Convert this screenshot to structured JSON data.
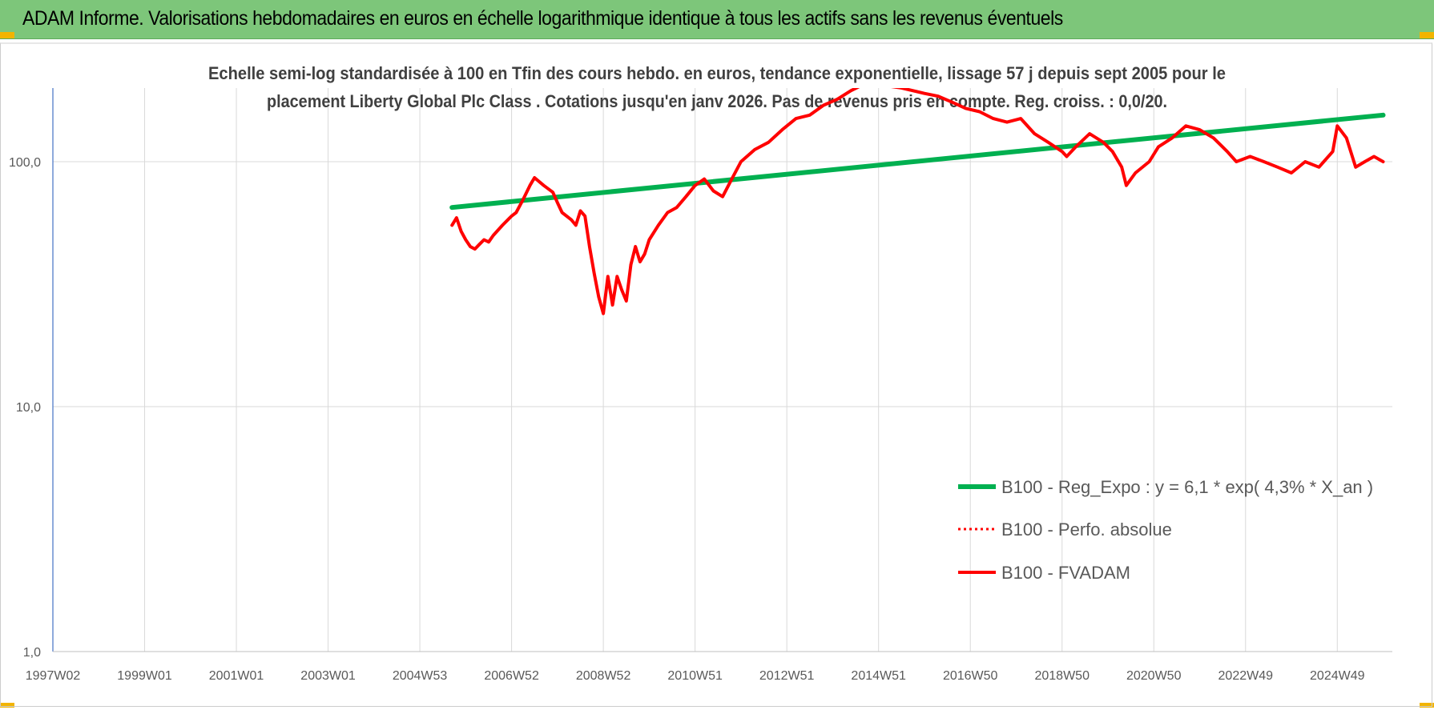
{
  "banner": {
    "title": "ADAM Informe. Valorisations hebdomadaires en euros en échelle logarithmique identique à tous les actifs sans les revenus éventuels"
  },
  "chart_data": {
    "type": "line",
    "subtitle_lines": [
      "Echelle semi-log standardisée à 100 en Tfin des cours hebdo. en euros, tendance exponentielle, lissage 57 j depuis sept 2005  pour le",
      "placement Liberty Global Plc Class . Cotations jusqu'en janv 2026. Pas de revenus pris en compte. Reg. croiss. : 0,0/20."
    ],
    "y_scale": "log",
    "ylim": [
      1,
      200
    ],
    "y_ticks": [
      {
        "value": 1,
        "label": "1,0"
      },
      {
        "value": 10,
        "label": "10,0"
      },
      {
        "value": 100,
        "label": "100,0"
      }
    ],
    "xlim": [
      1997.0,
      2026.2
    ],
    "x_ticks": [
      {
        "value": 1997.0,
        "label": "1997W02"
      },
      {
        "value": 1999.0,
        "label": "1999W01"
      },
      {
        "value": 2001.0,
        "label": "2001W01"
      },
      {
        "value": 2003.0,
        "label": "2003W01"
      },
      {
        "value": 2005.0,
        "label": "2004W53"
      },
      {
        "value": 2007.0,
        "label": "2006W52"
      },
      {
        "value": 2009.0,
        "label": "2008W52"
      },
      {
        "value": 2011.0,
        "label": "2010W51"
      },
      {
        "value": 2013.0,
        "label": "2012W51"
      },
      {
        "value": 2015.0,
        "label": "2014W51"
      },
      {
        "value": 2017.0,
        "label": "2016W50"
      },
      {
        "value": 2019.0,
        "label": "2018W50"
      },
      {
        "value": 2021.0,
        "label": "2020W50"
      },
      {
        "value": 2023.0,
        "label": "2022W49"
      },
      {
        "value": 2025.0,
        "label": "2024W49"
      }
    ],
    "grid": true,
    "legend_position": "bottom-right",
    "series": [
      {
        "name": "B100 - Reg_Expo : y = 6,1 * exp( 4,3% *  X_an )",
        "color": "#00b050",
        "style": "solid",
        "x": [
          2005.7,
          2026.0
        ],
        "y": [
          65,
          155
        ]
      },
      {
        "name": "B100 - Perfo. absolue",
        "color": "#ff0000",
        "style": "dotted",
        "x": [],
        "y": []
      },
      {
        "name": "B100 - FVADAM",
        "color": "#ff0000",
        "style": "solid",
        "x": [
          2005.7,
          2005.8,
          2005.9,
          2006.0,
          2006.1,
          2006.2,
          2006.3,
          2006.4,
          2006.5,
          2006.6,
          2006.8,
          2007.0,
          2007.1,
          2007.25,
          2007.4,
          2007.5,
          2007.7,
          2007.9,
          2008.0,
          2008.1,
          2008.3,
          2008.4,
          2008.5,
          2008.6,
          2008.7,
          2008.8,
          2008.9,
          2009.0,
          2009.1,
          2009.2,
          2009.3,
          2009.4,
          2009.5,
          2009.6,
          2009.7,
          2009.8,
          2009.9,
          2010.0,
          2010.2,
          2010.4,
          2010.6,
          2010.8,
          2011.0,
          2011.2,
          2011.4,
          2011.6,
          2011.8,
          2012.0,
          2012.3,
          2012.6,
          2012.9,
          2013.2,
          2013.5,
          2013.8,
          2014.1,
          2014.4,
          2014.7,
          2015.0,
          2015.1,
          2015.5,
          2016.0,
          2016.3,
          2016.6,
          2016.9,
          2017.2,
          2017.5,
          2017.8,
          2018.1,
          2018.4,
          2018.7,
          2019.0,
          2019.1,
          2019.3,
          2019.6,
          2019.9,
          2020.1,
          2020.3,
          2020.4,
          2020.6,
          2020.9,
          2021.1,
          2021.4,
          2021.7,
          2022.0,
          2022.3,
          2022.6,
          2022.8,
          2023.1,
          2023.4,
          2023.7,
          2024.0,
          2024.3,
          2024.6,
          2024.9,
          2025.0,
          2025.2,
          2025.4,
          2025.6,
          2025.8,
          2026.0
        ],
        "y": [
          55,
          59,
          52,
          48,
          45,
          44,
          46,
          48,
          47,
          50,
          55,
          60,
          62,
          70,
          80,
          86,
          80,
          75,
          68,
          62,
          58,
          55,
          63,
          60,
          45,
          35,
          28,
          24,
          34,
          26,
          34,
          30,
          27,
          38,
          45,
          39,
          42,
          48,
          55,
          62,
          65,
          72,
          80,
          85,
          76,
          72,
          85,
          100,
          112,
          120,
          135,
          150,
          155,
          170,
          180,
          195,
          208,
          215,
          205,
          200,
          190,
          185,
          175,
          165,
          160,
          150,
          145,
          150,
          130,
          120,
          110,
          105,
          115,
          130,
          120,
          110,
          95,
          80,
          90,
          100,
          115,
          125,
          140,
          135,
          125,
          110,
          100,
          105,
          100,
          95,
          90,
          100,
          95,
          110,
          140,
          125,
          95,
          100,
          105,
          100
        ]
      }
    ]
  }
}
